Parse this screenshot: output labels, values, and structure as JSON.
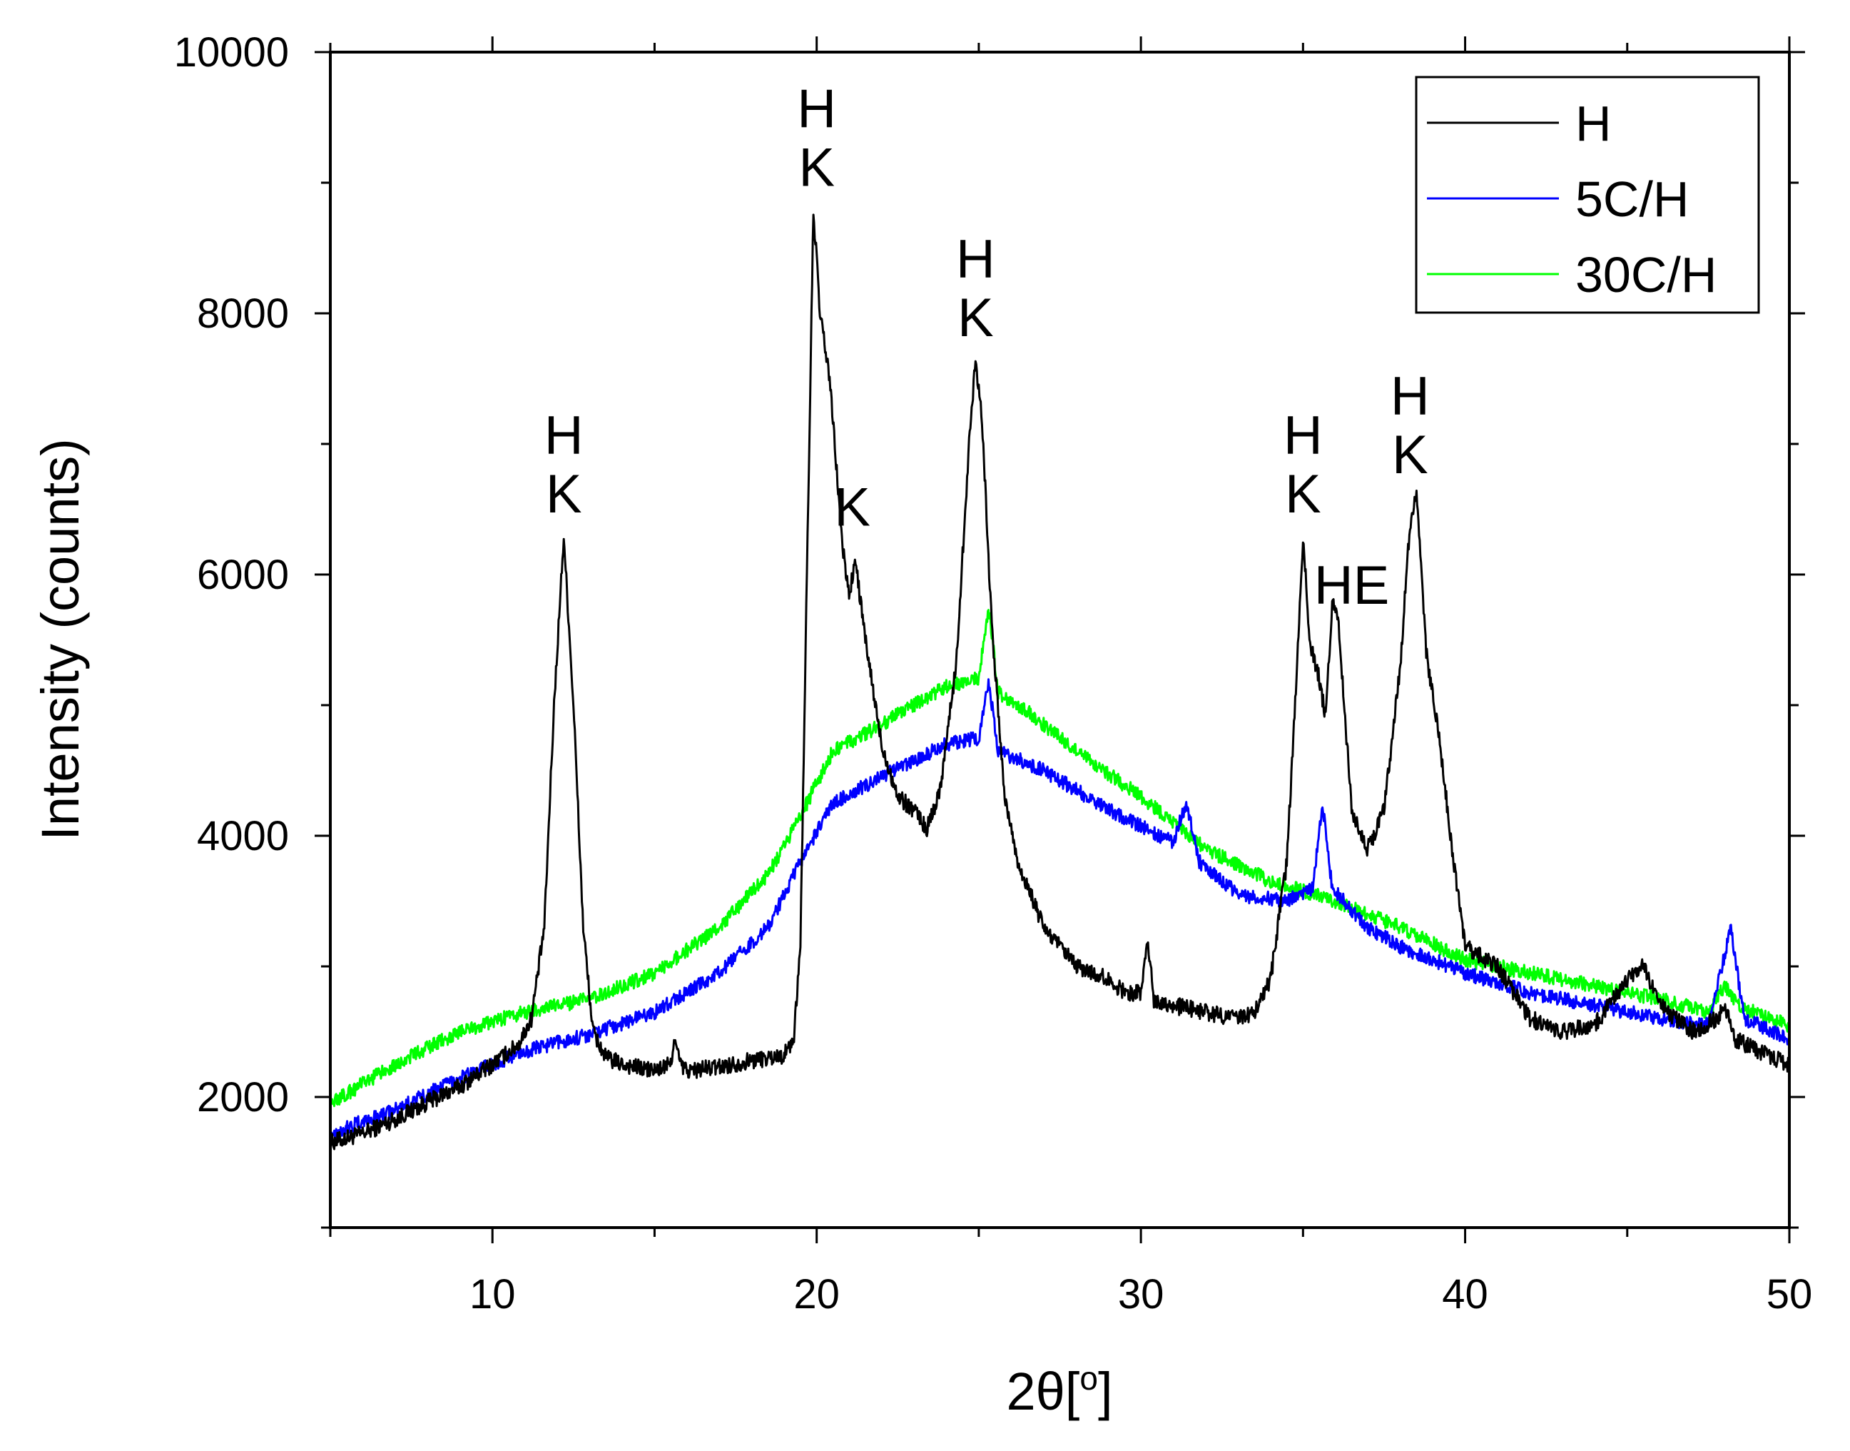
{
  "chart_data": {
    "type": "line",
    "title": "",
    "xlabel_main": "2θ",
    "xlabel_unit_open": "[",
    "xlabel_unit_sup": "o",
    "xlabel_unit_close": "]",
    "ylabel": "Intensity (counts)",
    "xlim": [
      5,
      50
    ],
    "ylim": [
      1000,
      10000
    ],
    "xticks": [
      {
        "value": 10,
        "label": "10"
      },
      {
        "value": 20,
        "label": "20"
      },
      {
        "value": 30,
        "label": "30"
      },
      {
        "value": 40,
        "label": "40"
      },
      {
        "value": 50,
        "label": "50"
      }
    ],
    "yticks": [
      {
        "value": 2000,
        "label": "2000"
      },
      {
        "value": 4000,
        "label": "4000"
      },
      {
        "value": 6000,
        "label": "6000"
      },
      {
        "value": 8000,
        "label": "8000"
      },
      {
        "value": 10000,
        "label": "10000"
      }
    ],
    "legend_position": "top-right",
    "series": [
      {
        "name": "H",
        "color": "#000000",
        "noise": 65,
        "points": [
          [
            5,
            1650
          ],
          [
            6,
            1720
          ],
          [
            7,
            1830
          ],
          [
            8,
            1960
          ],
          [
            9,
            2080
          ],
          [
            10,
            2250
          ],
          [
            10.8,
            2400
          ],
          [
            11.2,
            2600
          ],
          [
            11.6,
            3300
          ],
          [
            11.9,
            5000
          ],
          [
            12.2,
            6300
          ],
          [
            12.5,
            5000
          ],
          [
            12.8,
            3300
          ],
          [
            13.1,
            2500
          ],
          [
            13.5,
            2300
          ],
          [
            14,
            2250
          ],
          [
            15,
            2200
          ],
          [
            15.5,
            2250
          ],
          [
            15.6,
            2450
          ],
          [
            15.8,
            2250
          ],
          [
            16,
            2200
          ],
          [
            17,
            2230
          ],
          [
            18,
            2280
          ],
          [
            19,
            2320
          ],
          [
            19.3,
            2450
          ],
          [
            19.5,
            3200
          ],
          [
            19.7,
            6000
          ],
          [
            19.9,
            8800
          ],
          [
            20.1,
            8000
          ],
          [
            20.4,
            7500
          ],
          [
            20.8,
            6200
          ],
          [
            21,
            5850
          ],
          [
            21.2,
            6100
          ],
          [
            21.5,
            5500
          ],
          [
            22,
            4700
          ],
          [
            22.5,
            4300
          ],
          [
            23,
            4200
          ],
          [
            23.4,
            4050
          ],
          [
            23.8,
            4350
          ],
          [
            24.3,
            5300
          ],
          [
            24.7,
            7000
          ],
          [
            24.9,
            7650
          ],
          [
            25.1,
            7200
          ],
          [
            25.4,
            5600
          ],
          [
            25.8,
            4300
          ],
          [
            26.2,
            3800
          ],
          [
            27,
            3300
          ],
          [
            28,
            3000
          ],
          [
            29,
            2900
          ],
          [
            29.5,
            2800
          ],
          [
            30,
            2800
          ],
          [
            30.2,
            3200
          ],
          [
            30.4,
            2750
          ],
          [
            31,
            2700
          ],
          [
            32,
            2650
          ],
          [
            33,
            2600
          ],
          [
            33.5,
            2650
          ],
          [
            34,
            2900
          ],
          [
            34.5,
            3800
          ],
          [
            34.8,
            5200
          ],
          [
            35,
            6300
          ],
          [
            35.2,
            5500
          ],
          [
            35.5,
            5200
          ],
          [
            35.7,
            4900
          ],
          [
            35.9,
            5800
          ],
          [
            36.1,
            5600
          ],
          [
            36.5,
            4200
          ],
          [
            37,
            3900
          ],
          [
            37.5,
            4200
          ],
          [
            38,
            5300
          ],
          [
            38.3,
            6400
          ],
          [
            38.5,
            6600
          ],
          [
            38.8,
            5400
          ],
          [
            39.2,
            4750
          ],
          [
            39.6,
            3900
          ],
          [
            40,
            3150
          ],
          [
            41,
            3000
          ],
          [
            42,
            2600
          ],
          [
            43,
            2500
          ],
          [
            44,
            2550
          ],
          [
            45,
            2900
          ],
          [
            45.5,
            3000
          ],
          [
            46,
            2700
          ],
          [
            47,
            2500
          ],
          [
            47.8,
            2600
          ],
          [
            48,
            2700
          ],
          [
            48.3,
            2450
          ],
          [
            49,
            2350
          ],
          [
            50,
            2250
          ]
        ]
      },
      {
        "name": "5C/H",
        "color": "#0000ff",
        "noise": 55,
        "points": [
          [
            5,
            1720
          ],
          [
            7,
            1900
          ],
          [
            9,
            2150
          ],
          [
            11,
            2350
          ],
          [
            13,
            2480
          ],
          [
            15,
            2650
          ],
          [
            17,
            2950
          ],
          [
            18.5,
            3300
          ],
          [
            19.5,
            3800
          ],
          [
            20.5,
            4250
          ],
          [
            22,
            4450
          ],
          [
            24,
            4700
          ],
          [
            25,
            4750
          ],
          [
            25.3,
            5200
          ],
          [
            25.6,
            4650
          ],
          [
            27,
            4500
          ],
          [
            29,
            4200
          ],
          [
            31,
            3950
          ],
          [
            31.4,
            4250
          ],
          [
            31.8,
            3800
          ],
          [
            33,
            3550
          ],
          [
            34.5,
            3500
          ],
          [
            35.3,
            3600
          ],
          [
            35.6,
            4250
          ],
          [
            35.9,
            3600
          ],
          [
            37,
            3300
          ],
          [
            38,
            3150
          ],
          [
            40,
            2950
          ],
          [
            42,
            2800
          ],
          [
            44,
            2700
          ],
          [
            46,
            2600
          ],
          [
            47.5,
            2550
          ],
          [
            48.2,
            3300
          ],
          [
            48.6,
            2600
          ],
          [
            50,
            2450
          ]
        ]
      },
      {
        "name": "30C/H",
        "color": "#00ff00",
        "noise": 55,
        "points": [
          [
            5,
            1950
          ],
          [
            7,
            2250
          ],
          [
            9,
            2500
          ],
          [
            11,
            2650
          ],
          [
            13,
            2750
          ],
          [
            15,
            2950
          ],
          [
            17,
            3300
          ],
          [
            18.5,
            3700
          ],
          [
            19.5,
            4150
          ],
          [
            20.5,
            4650
          ],
          [
            22,
            4850
          ],
          [
            24,
            5150
          ],
          [
            25,
            5200
          ],
          [
            25.3,
            5750
          ],
          [
            25.6,
            5100
          ],
          [
            26.5,
            4950
          ],
          [
            28,
            4650
          ],
          [
            30,
            4300
          ],
          [
            32,
            3900
          ],
          [
            34,
            3650
          ],
          [
            36,
            3500
          ],
          [
            38,
            3300
          ],
          [
            40,
            3050
          ],
          [
            42,
            2950
          ],
          [
            44,
            2850
          ],
          [
            46,
            2750
          ],
          [
            47.5,
            2650
          ],
          [
            48,
            2850
          ],
          [
            48.4,
            2700
          ],
          [
            50,
            2550
          ]
        ]
      }
    ],
    "annotations": [
      {
        "x": 12.2,
        "lines": [
          "H",
          "K"
        ]
      },
      {
        "x": 20.0,
        "lines": [
          "H",
          "K"
        ]
      },
      {
        "x": 21.1,
        "lines": [
          "K"
        ]
      },
      {
        "x": 24.9,
        "lines": [
          "H",
          "K"
        ]
      },
      {
        "x": 35.0,
        "lines": [
          "H",
          "K"
        ]
      },
      {
        "x": 36.5,
        "lines": [
          "HE"
        ]
      },
      {
        "x": 38.3,
        "lines": [
          "H",
          "K"
        ]
      }
    ]
  }
}
